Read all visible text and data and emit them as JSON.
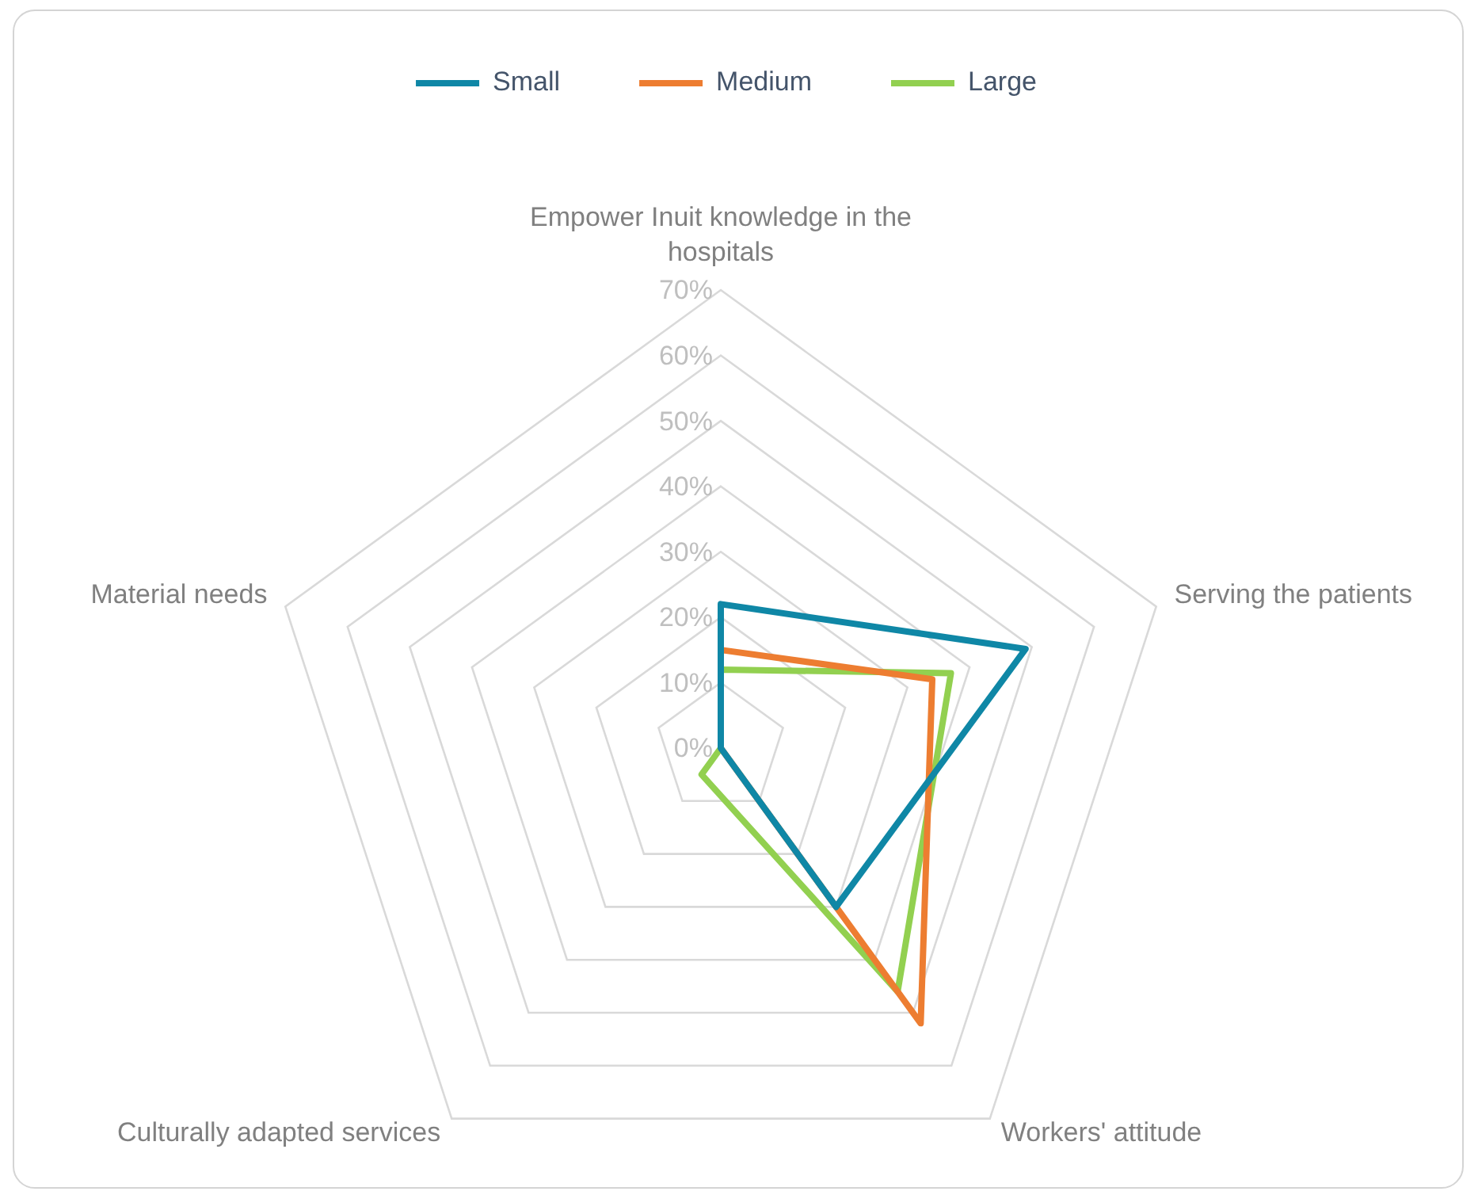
{
  "chart_data": {
    "type": "radar",
    "categories": [
      "Empower Inuit knowledge in the hospitals",
      "Serving the patients",
      "Workers' attitude",
      "Culturally adapted services",
      "Material needs"
    ],
    "series": [
      {
        "name": "Small",
        "color": "#0f87a6",
        "values": [
          22,
          49,
          30,
          0,
          0
        ]
      },
      {
        "name": "Medium",
        "color": "#ed7d31",
        "values": [
          15,
          34,
          52,
          0,
          0
        ]
      },
      {
        "name": "Large",
        "color": "#92d050",
        "values": [
          12,
          37,
          46,
          5,
          0
        ]
      }
    ],
    "ylim": [
      0,
      70
    ],
    "yticks": [
      {
        "value": 0,
        "label": "0%"
      },
      {
        "value": 10,
        "label": "10%"
      },
      {
        "value": 20,
        "label": "20%"
      },
      {
        "value": 30,
        "label": "30%"
      },
      {
        "value": 40,
        "label": "40%"
      },
      {
        "value": 50,
        "label": "50%"
      },
      {
        "value": 60,
        "label": "60%"
      },
      {
        "value": 70,
        "label": "70%"
      }
    ],
    "grid": true,
    "legend": "top",
    "marker": "none",
    "line_style": "solid"
  }
}
